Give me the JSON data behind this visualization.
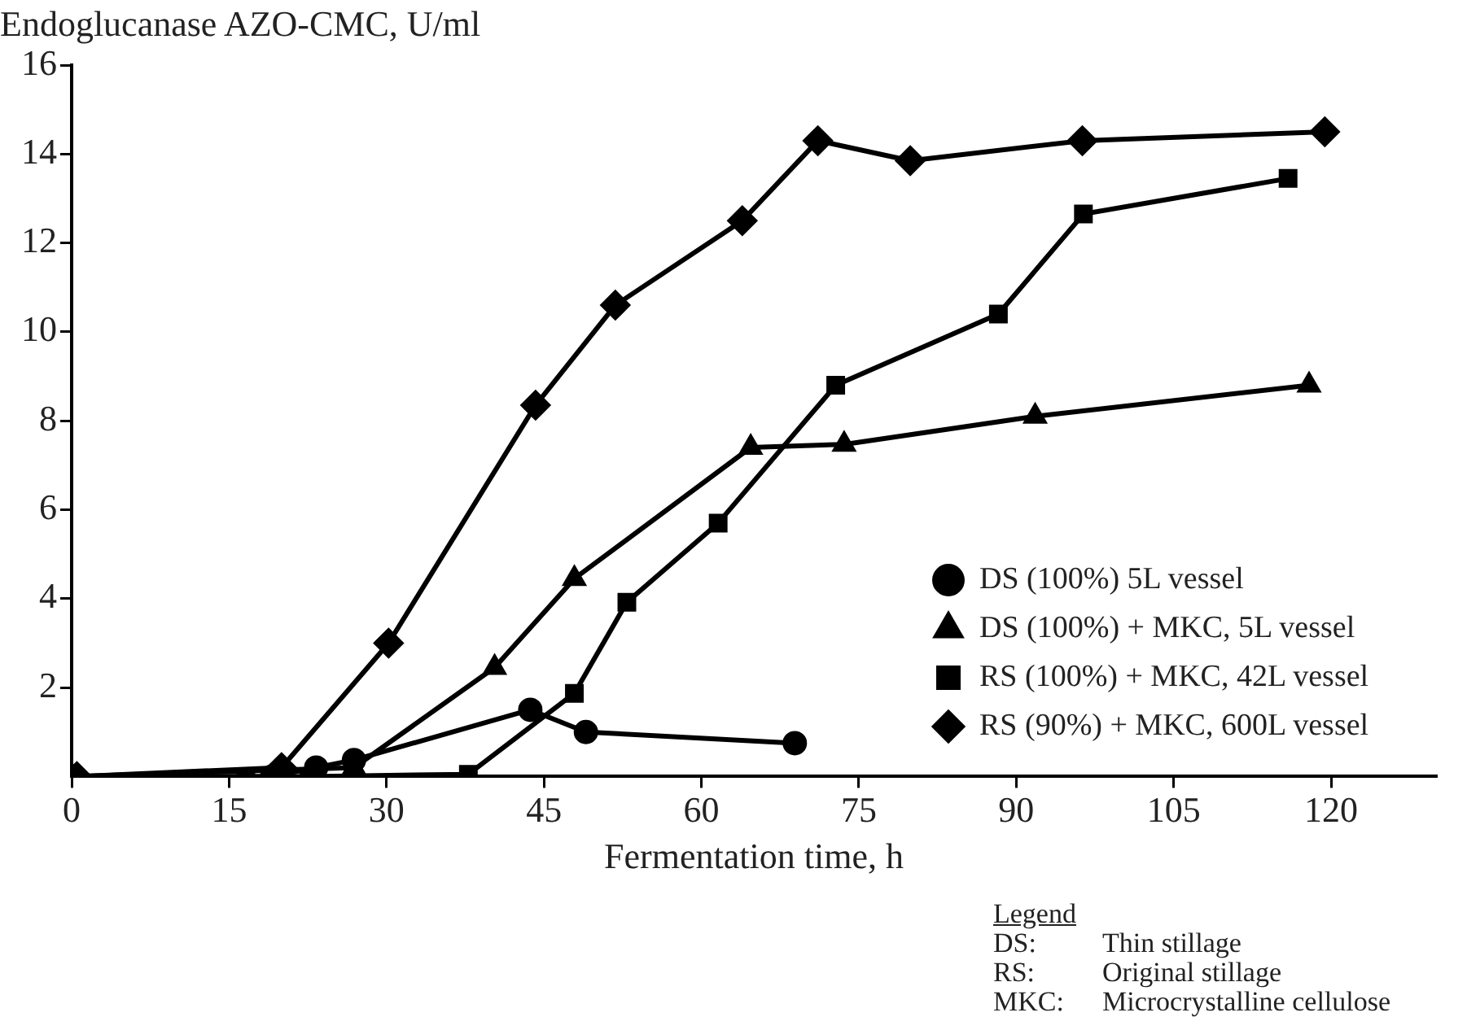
{
  "chart_data": {
    "type": "line",
    "ylabel": "Endoglucanase AZO-CMC, U/ml",
    "xlabel": "Fermentation time, h",
    "xlim": [
      0,
      130
    ],
    "xticks": [
      0,
      15,
      30,
      45,
      60,
      75,
      90,
      105,
      120
    ],
    "ylim": [
      0,
      16
    ],
    "yticks": [
      2,
      4,
      6,
      8,
      10,
      12,
      14,
      16
    ],
    "legend": "right",
    "grid": false,
    "line_style": "solid",
    "series": [
      {
        "name": "DS (100%) 5L vessel",
        "color": "#000000",
        "marker": "circle",
        "x": [
          0,
          19.1,
          23.3,
          26.9,
          43.7,
          49.0,
          68.9
        ],
        "values": [
          0,
          0,
          0.2,
          0.37,
          1.5,
          1.0,
          0.75
        ]
      },
      {
        "name": "DS (100%) + MKC, 5L vessel",
        "color": "#000000",
        "marker": "triangle",
        "x": [
          0,
          26.9,
          40.3,
          47.9,
          64.7,
          73.6,
          91.8,
          117.9
        ],
        "values": [
          0,
          0.2,
          2.45,
          4.45,
          7.4,
          7.47,
          8.1,
          8.8
        ]
      },
      {
        "name": "RS (100%) + MKC, 42L vessel",
        "color": "#000000",
        "marker": "square",
        "x": [
          0,
          16.6,
          22.6,
          37.8,
          47.9,
          52.9,
          61.6,
          72.8,
          88.3,
          96.4,
          115.9
        ],
        "values": [
          0,
          0,
          0,
          0.05,
          1.87,
          3.92,
          5.7,
          8.8,
          10.4,
          12.65,
          13.45
        ]
      },
      {
        "name": "RS (90%) + MKC, 600L vessel",
        "color": "#000000",
        "marker": "diamond",
        "x": [
          0.5,
          20.0,
          30.2,
          44.2,
          51.8,
          63.9,
          71.1,
          79.9,
          96.3,
          119.4
        ],
        "values": [
          0,
          0.2,
          3.0,
          8.35,
          10.6,
          12.5,
          14.3,
          13.85,
          14.3,
          14.5
        ]
      }
    ],
    "annotations": [
      "Legend",
      "DS:\tThin stillage",
      "RS:\tOriginal stillage",
      "MKC:\tMicrocrystalline cellulose"
    ]
  }
}
